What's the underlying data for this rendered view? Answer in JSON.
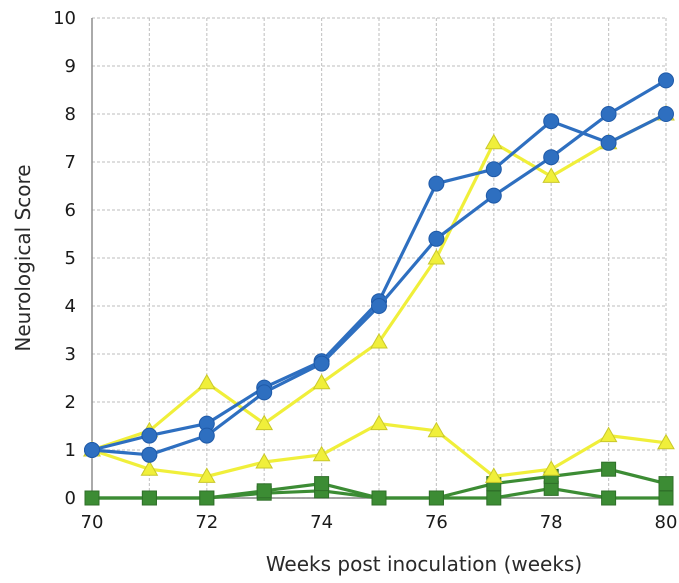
{
  "chart_data": {
    "type": "line",
    "title": "",
    "xlabel": "Weeks post inoculation (weeks)",
    "ylabel": "Neurological Score",
    "xlim": [
      70,
      80
    ],
    "ylim": [
      0,
      10
    ],
    "x_ticks": [
      "70",
      "72",
      "74",
      "76",
      "78",
      "80"
    ],
    "y_ticks": [
      "0",
      "1",
      "2",
      "3",
      "4",
      "5",
      "6",
      "7",
      "8",
      "9",
      "10"
    ],
    "grid": true,
    "legend": "none",
    "x": [
      70,
      71,
      72,
      73,
      74,
      75,
      76,
      77,
      78,
      79,
      80
    ],
    "series": [
      {
        "marker": "circle",
        "color": "#2e6fc0",
        "values": [
          1.0,
          0.9,
          1.3,
          2.2,
          2.8,
          4.0,
          5.4,
          6.3,
          7.1,
          8.0,
          8.7
        ]
      },
      {
        "marker": "circle",
        "color": "#2e6fc0",
        "values": [
          1.0,
          1.3,
          1.55,
          2.3,
          2.85,
          4.1,
          6.55,
          6.85,
          7.85,
          7.4,
          8.0
        ]
      },
      {
        "marker": "triangle",
        "color": "#f0ef3a",
        "values": [
          1.0,
          1.4,
          2.4,
          1.55,
          2.4,
          3.25,
          5.0,
          7.4,
          6.7,
          7.4,
          8.0
        ]
      },
      {
        "marker": "triangle",
        "color": "#f0ef3a",
        "values": [
          1.0,
          0.6,
          0.45,
          0.75,
          0.9,
          1.55,
          1.4,
          0.45,
          0.6,
          1.3,
          1.15
        ]
      },
      {
        "marker": "square",
        "color": "#3c8c34",
        "values": [
          0.0,
          0.0,
          0.0,
          0.15,
          0.3,
          0.0,
          0.0,
          0.3,
          0.45,
          0.6,
          0.3
        ]
      },
      {
        "marker": "square",
        "color": "#3c8c34",
        "values": [
          0.0,
          0.0,
          0.0,
          0.1,
          0.15,
          0.0,
          0.0,
          0.0,
          0.2,
          0.0,
          0.0
        ]
      }
    ]
  }
}
